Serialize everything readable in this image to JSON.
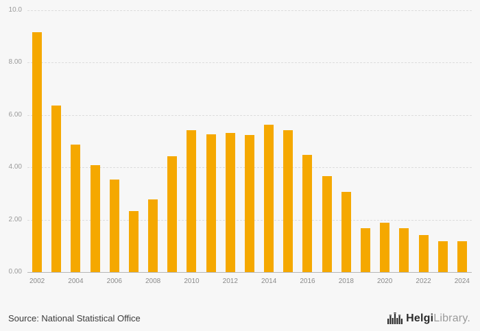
{
  "chart_data": {
    "type": "bar",
    "title": "",
    "xlabel": "",
    "ylabel": "",
    "categories": [
      2002,
      2003,
      2004,
      2005,
      2006,
      2007,
      2008,
      2009,
      2010,
      2011,
      2012,
      2013,
      2014,
      2015,
      2016,
      2017,
      2018,
      2019,
      2020,
      2021,
      2022,
      2023,
      2024
    ],
    "values": [
      9.2,
      6.4,
      4.9,
      4.1,
      3.55,
      2.35,
      2.8,
      4.45,
      5.45,
      5.3,
      5.35,
      5.25,
      5.65,
      5.45,
      4.5,
      3.7,
      3.1,
      1.7,
      1.9,
      1.7,
      1.45,
      1.2,
      1.2
    ],
    "ylim": [
      0,
      10
    ],
    "yticks": [
      {
        "label": "10.0",
        "value": 10
      },
      {
        "label": "8.00",
        "value": 8
      },
      {
        "label": "6.00",
        "value": 6
      },
      {
        "label": "4.00",
        "value": 4
      },
      {
        "label": "2.00",
        "value": 2
      },
      {
        "label": "0.00",
        "value": 0
      }
    ],
    "x_tick_labels": [
      2002,
      2004,
      2006,
      2008,
      2010,
      2012,
      2014,
      2016,
      2018,
      2020,
      2022,
      2024
    ],
    "bar_color": "#F5A800",
    "background_color": "#f7f7f7",
    "grid": "horizontal-dashed",
    "legend": "none"
  },
  "footer": {
    "source_label": "Source: National Statistical Office",
    "logo_text_primary": "Helgi",
    "logo_text_secondary": "Library."
  }
}
